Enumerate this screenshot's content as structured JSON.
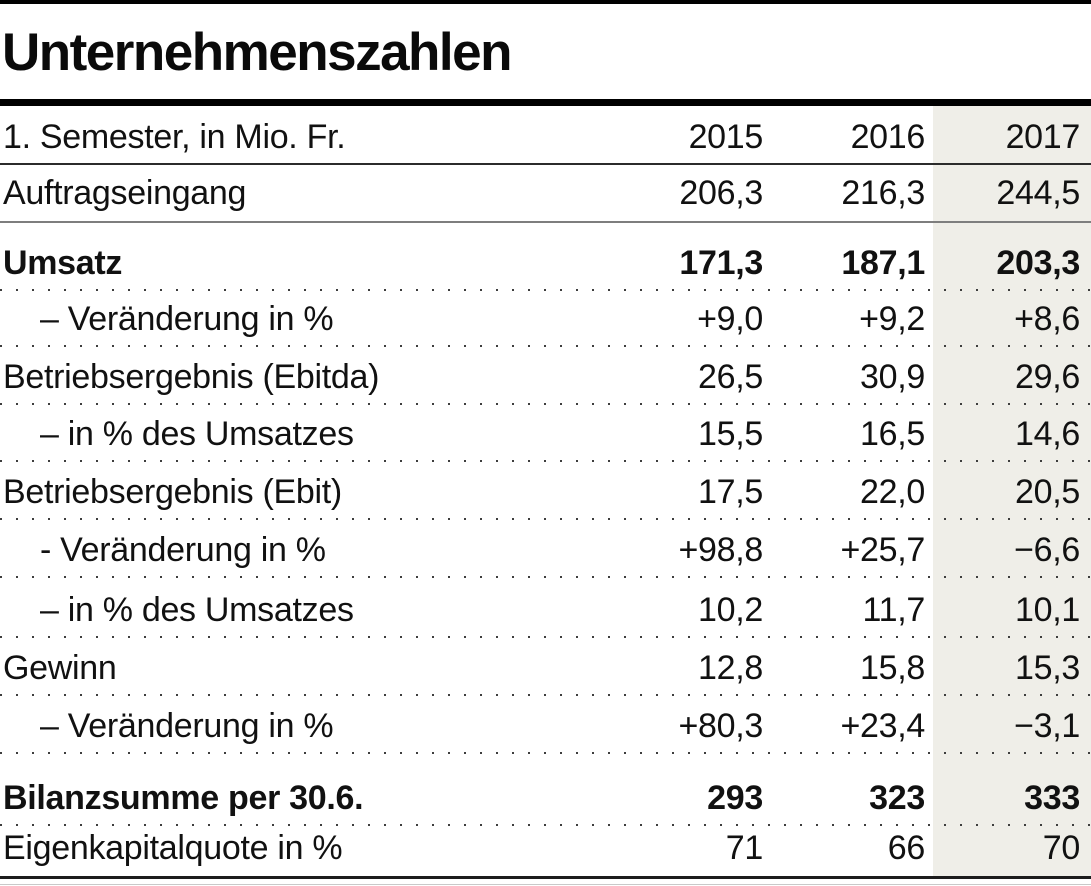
{
  "title": "Unternehmenszahlen",
  "table": {
    "header": {
      "label": "1. Semester, in Mio. Fr.",
      "years": [
        "2015",
        "2016",
        "2017"
      ]
    },
    "rows": [
      {
        "label": "Auftragseingang",
        "values": [
          "206,3",
          "216,3",
          "244,5"
        ]
      },
      {
        "label": "Umsatz",
        "values": [
          "171,3",
          "187,1",
          "203,3"
        ]
      },
      {
        "label": "– Veränderung in %",
        "values": [
          "+9,0",
          "+9,2",
          "+8,6"
        ]
      },
      {
        "label": "Betriebsergebnis (Ebitda)",
        "values": [
          "26,5",
          "30,9",
          "29,6"
        ]
      },
      {
        "label": "– in % des Umsatzes",
        "values": [
          "15,5",
          "16,5",
          "14,6"
        ]
      },
      {
        "label": "Betriebsergebnis (Ebit)",
        "values": [
          "17,5",
          "22,0",
          "20,5"
        ]
      },
      {
        "label": "- Veränderung in %",
        "values": [
          "+98,8",
          "+25,7",
          "−6,6"
        ]
      },
      {
        "label": "– in % des Umsatzes",
        "values": [
          "10,2",
          "11,7",
          "10,1"
        ]
      },
      {
        "label": "Gewinn",
        "values": [
          "12,8",
          "15,8",
          "15,3"
        ]
      },
      {
        "label": "– Veränderung in %",
        "values": [
          "+80,3",
          "+23,4",
          "−3,1"
        ]
      },
      {
        "label": "Bilanzsumme per 30.6.",
        "values": [
          "293",
          "323",
          "333"
        ]
      },
      {
        "label": "Eigenkapitalquote in %",
        "values": [
          "71",
          "66",
          "70"
        ]
      }
    ],
    "highlight_color": "#efeee8"
  },
  "chart_data": {
    "type": "table",
    "title": "Unternehmenszahlen",
    "subtitle": "1. Semester, in Mio. Fr.",
    "columns": [
      "2015",
      "2016",
      "2017"
    ],
    "highlighted_column": "2017",
    "rows": [
      {
        "label": "Auftragseingang",
        "values": [
          206.3,
          216.3,
          244.5
        ],
        "bold": false
      },
      {
        "label": "Umsatz",
        "values": [
          171.3,
          187.1,
          203.3
        ],
        "bold": true
      },
      {
        "label": "Veränderung in %",
        "values": [
          9.0,
          9.2,
          8.6
        ],
        "bold": false
      },
      {
        "label": "Betriebsergebnis (Ebitda)",
        "values": [
          26.5,
          30.9,
          29.6
        ],
        "bold": false
      },
      {
        "label": "in % des Umsatzes",
        "values": [
          15.5,
          16.5,
          14.6
        ],
        "bold": false
      },
      {
        "label": "Betriebsergebnis (Ebit)",
        "values": [
          17.5,
          22.0,
          20.5
        ],
        "bold": false
      },
      {
        "label": "Veränderung in %",
        "values": [
          98.8,
          25.7,
          -6.6
        ],
        "bold": false
      },
      {
        "label": "in % des Umsatzes",
        "values": [
          10.2,
          11.7,
          10.1
        ],
        "bold": false
      },
      {
        "label": "Gewinn",
        "values": [
          12.8,
          15.8,
          15.3
        ],
        "bold": false
      },
      {
        "label": "Veränderung in %",
        "values": [
          80.3,
          23.4,
          -3.1
        ],
        "bold": false
      },
      {
        "label": "Bilanzsumme per 30.6.",
        "values": [
          293,
          323,
          333
        ],
        "bold": true
      },
      {
        "label": "Eigenkapitalquote in %",
        "values": [
          71,
          66,
          70
        ],
        "bold": false
      }
    ]
  }
}
